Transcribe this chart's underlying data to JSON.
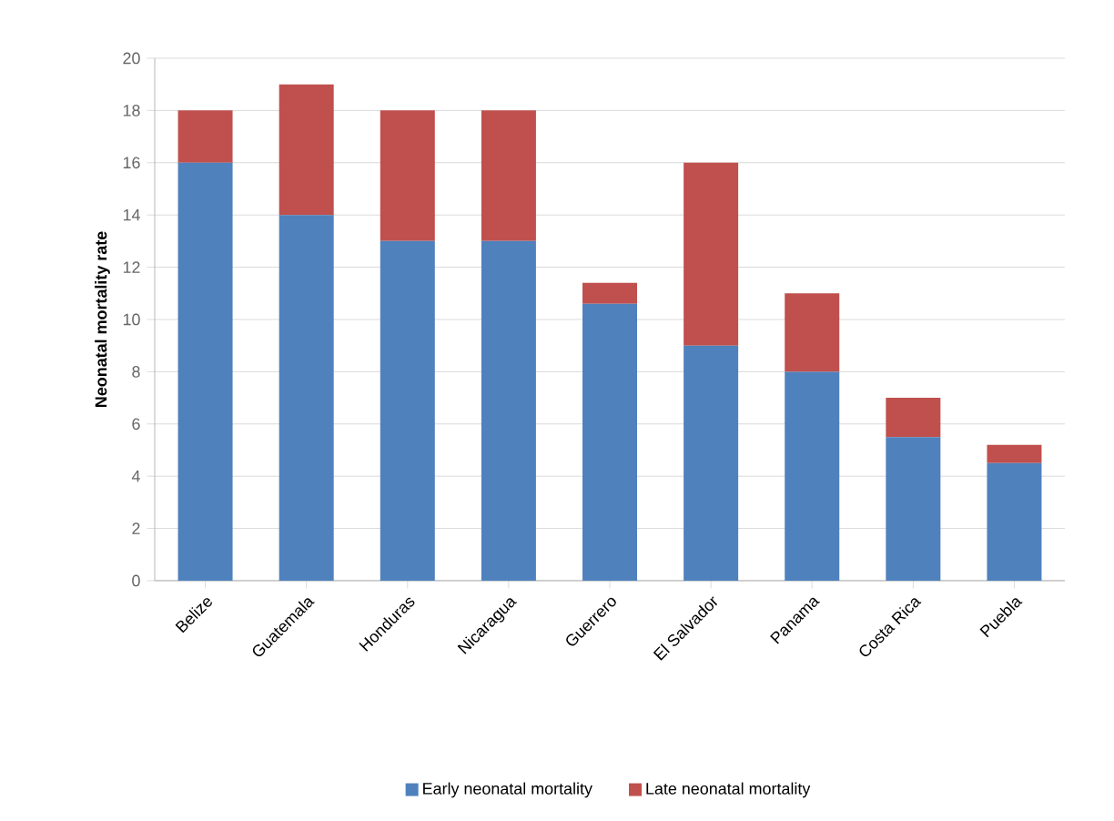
{
  "chart_data": {
    "type": "bar",
    "stacked": true,
    "ylabel": "Neonatal mortality rate",
    "categories": [
      "Belize",
      "Guatemala",
      "Honduras",
      "Nicaragua",
      "Guerrero",
      "El Salvador",
      "Panama",
      "Costa Rica",
      "Puebla"
    ],
    "series": [
      {
        "name": "Early neonatal mortality",
        "color": "#4f81bd",
        "values": [
          16,
          14,
          13,
          13,
          10.6,
          9,
          8,
          5.5,
          4.5
        ]
      },
      {
        "name": "Late neonatal mortality",
        "color": "#c0504d",
        "values": [
          2,
          5,
          5,
          5,
          0.8,
          7,
          3,
          1.5,
          0.7
        ]
      }
    ],
    "ylim": [
      0,
      20
    ],
    "yticks": [
      0,
      2,
      4,
      6,
      8,
      10,
      12,
      14,
      16,
      18,
      20
    ],
    "grid": "y",
    "legend": "bottom"
  }
}
